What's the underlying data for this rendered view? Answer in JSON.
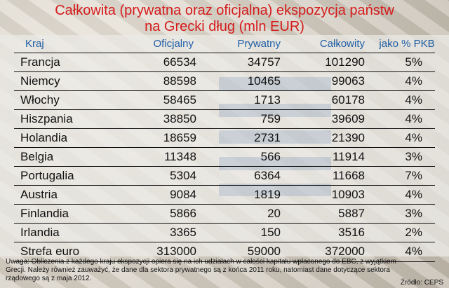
{
  "chart_data": {
    "type": "table",
    "title": "Całkowita (prywatna oraz oficjalna) ekspozycja państw",
    "subtitle": "na Grecki dług (mln EUR)",
    "columns": [
      "Kraj",
      "Oficjalny",
      "Prywatny",
      "Całkowity",
      "jako % PKB"
    ],
    "rows": [
      {
        "kraj": "Francja",
        "oficjalny": "66534",
        "prywatny": "34757",
        "calkowity": "101290",
        "pkb": "5%"
      },
      {
        "kraj": "Niemcy",
        "oficjalny": "88598",
        "prywatny": "10465",
        "calkowity": "99063",
        "pkb": "4%"
      },
      {
        "kraj": "Włochy",
        "oficjalny": "58465",
        "prywatny": "1713",
        "calkowity": "60178",
        "pkb": "4%"
      },
      {
        "kraj": "Hiszpania",
        "oficjalny": "38850",
        "prywatny": "759",
        "calkowity": "39609",
        "pkb": "4%"
      },
      {
        "kraj": "Holandia",
        "oficjalny": "18659",
        "prywatny": "2731",
        "calkowity": "21390",
        "pkb": "4%"
      },
      {
        "kraj": "Belgia",
        "oficjalny": "11348",
        "prywatny": "566",
        "calkowity": "11914",
        "pkb": "3%"
      },
      {
        "kraj": "Portugalia",
        "oficjalny": "5304",
        "prywatny": "6364",
        "calkowity": "11668",
        "pkb": "7%"
      },
      {
        "kraj": "Austria",
        "oficjalny": "9084",
        "prywatny": "1819",
        "calkowity": "10903",
        "pkb": "4%"
      },
      {
        "kraj": "Finlandia",
        "oficjalny": "5866",
        "prywatny": "20",
        "calkowity": "5887",
        "pkb": "3%"
      },
      {
        "kraj": "Irlandia",
        "oficjalny": "3365",
        "prywatny": "150",
        "calkowity": "3516",
        "pkb": "2%"
      },
      {
        "kraj": "Strefa euro",
        "oficjalny": "313000",
        "prywatny": "59000",
        "calkowity": "372000",
        "pkb": "4%"
      }
    ],
    "note": "Uwaga: Obliczenia z każdego kraju ekspozycji opiera się na ich udziałach w całości kapitału wpłaconego do EBC, z wyjątkiem Grecji. Należy również zauważyć, że dane dla sektora prywatnego są z końca 2011 roku, natomiast dane dotyczące sektora rządowego są z maja 2012.",
    "source": "Źródło: CEPS"
  }
}
